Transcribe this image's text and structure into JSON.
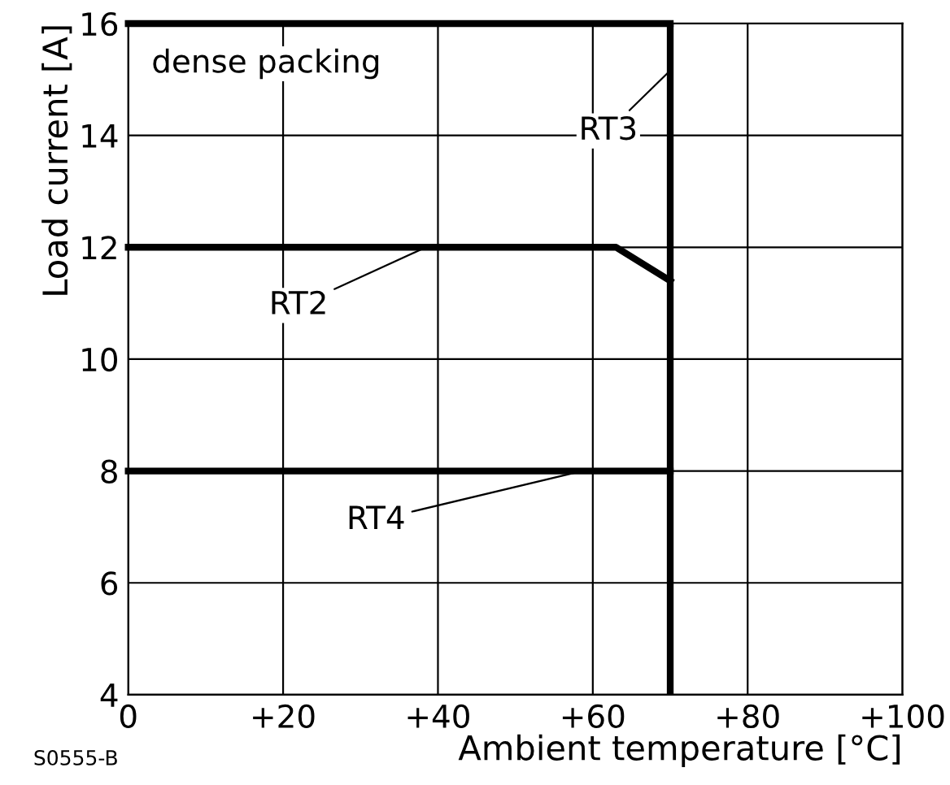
{
  "chart_data": {
    "type": "line",
    "xlabel": "Ambient temperature [°C]",
    "ylabel": "Load current [A]",
    "series": [
      {
        "name": "RT3",
        "color": "#000000",
        "x": [
          0,
          70
        ],
        "values": [
          16,
          16
        ]
      },
      {
        "name": "RT2",
        "color": "#000000",
        "x": [
          0,
          63,
          70
        ],
        "values": [
          12,
          12,
          11.4
        ]
      },
      {
        "name": "RT4",
        "color": "#000000",
        "x": [
          0,
          70
        ],
        "values": [
          8,
          8
        ]
      }
    ],
    "ref_lines": [
      {
        "axis": "x",
        "value": 70,
        "color": "#000000"
      }
    ],
    "xlim": [
      0,
      100
    ],
    "xticks": [
      0,
      {
        "value": 20,
        "label": "+20"
      },
      {
        "value": 40,
        "label": "+40"
      },
      {
        "value": 60,
        "label": "+60"
      },
      {
        "value": 80,
        "label": "+80"
      },
      {
        "value": 100,
        "label": "+100"
      }
    ],
    "ylim": [
      4,
      16
    ],
    "yticks": [
      4,
      6,
      8,
      10,
      12,
      14,
      16
    ],
    "grid": true,
    "marker": "none",
    "line_style": "solid",
    "annotations": [
      "dense packing",
      "S0555-B"
    ]
  }
}
